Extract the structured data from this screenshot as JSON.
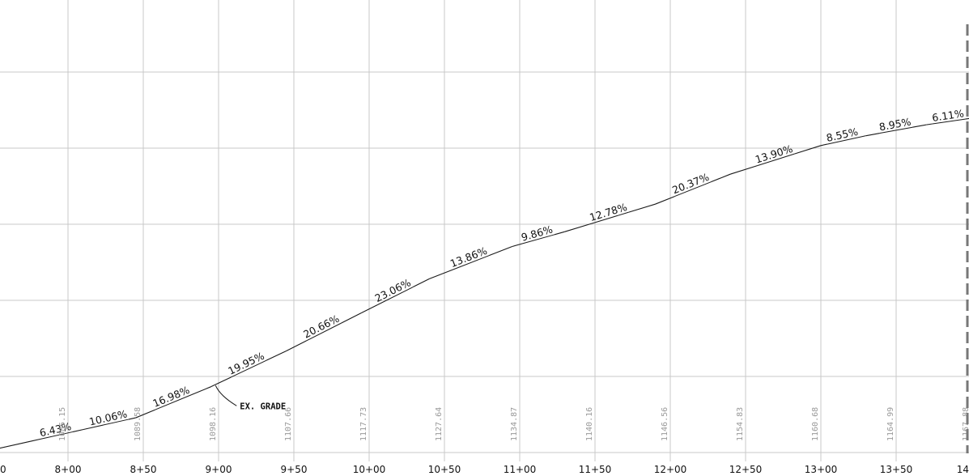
{
  "chart_data": {
    "type": "line",
    "title": "",
    "xlabel": "",
    "ylabel": "",
    "grid": true,
    "x_range": [
      750,
      1400
    ],
    "y_range": [
      1060,
      1220
    ],
    "stations": [
      {
        "station": 750,
        "label": "0",
        "elevation": null,
        "elevation_label": ""
      },
      {
        "station": 800,
        "label": "8+00",
        "elevation": 1085.15,
        "elevation_label": "1085.15"
      },
      {
        "station": 850,
        "label": "8+50",
        "elevation": 1089.58,
        "elevation_label": "1089.58"
      },
      {
        "station": 900,
        "label": "9+00",
        "elevation": 1098.16,
        "elevation_label": "1098.16"
      },
      {
        "station": 950,
        "label": "9+50",
        "elevation": 1107.66,
        "elevation_label": "1107.66"
      },
      {
        "station": 1000,
        "label": "10+00",
        "elevation": 1117.73,
        "elevation_label": "1117.73"
      },
      {
        "station": 1050,
        "label": "10+50",
        "elevation": 1127.64,
        "elevation_label": "1127.64"
      },
      {
        "station": 1100,
        "label": "11+00",
        "elevation": 1134.87,
        "elevation_label": "1134.87"
      },
      {
        "station": 1150,
        "label": "11+50",
        "elevation": 1140.16,
        "elevation_label": "1140.16"
      },
      {
        "station": 1200,
        "label": "12+00",
        "elevation": 1146.56,
        "elevation_label": "1146.56"
      },
      {
        "station": 1250,
        "label": "12+50",
        "elevation": 1154.83,
        "elevation_label": "1154.83"
      },
      {
        "station": 1300,
        "label": "13+00",
        "elevation": 1160.68,
        "elevation_label": "1160.68"
      },
      {
        "station": 1350,
        "label": "13+50",
        "elevation": 1164.99,
        "elevation_label": "1164.99"
      },
      {
        "station": 1400,
        "label": "14",
        "elevation": 1167.88,
        "elevation_label": "1167.88"
      }
    ],
    "grade_segments": [
      {
        "from": 750,
        "to": 775,
        "slope": ""
      },
      {
        "from": 775,
        "to": 810,
        "slope": "6.43%"
      },
      {
        "from": 810,
        "to": 845,
        "slope": "10.06%"
      },
      {
        "from": 845,
        "to": 895,
        "slope": "16.98%"
      },
      {
        "from": 895,
        "to": 945,
        "slope": "19.95%"
      },
      {
        "from": 945,
        "to": 995,
        "slope": "20.66%"
      },
      {
        "from": 995,
        "to": 1040,
        "slope": "23.06%"
      },
      {
        "from": 1040,
        "to": 1095,
        "slope": "13.86%"
      },
      {
        "from": 1095,
        "to": 1130,
        "slope": "9.86%"
      },
      {
        "from": 1130,
        "to": 1190,
        "slope": "12.78%"
      },
      {
        "from": 1190,
        "to": 1240,
        "slope": "20.37%"
      },
      {
        "from": 1240,
        "to": 1300,
        "slope": "13.90%"
      },
      {
        "from": 1300,
        "to": 1330,
        "slope": "8.55%"
      },
      {
        "from": 1330,
        "to": 1370,
        "slope": "8.95%"
      },
      {
        "from": 1370,
        "to": 1400,
        "slope": "6.11%"
      }
    ],
    "annotations": [
      {
        "text": "EX. GRADE",
        "station": 898
      }
    ]
  },
  "colors": {
    "grid": "#c9c9c9",
    "grade_line": "#1a1a1a",
    "elevation_text": "#9a9a9a",
    "right_rule": "#777777"
  }
}
